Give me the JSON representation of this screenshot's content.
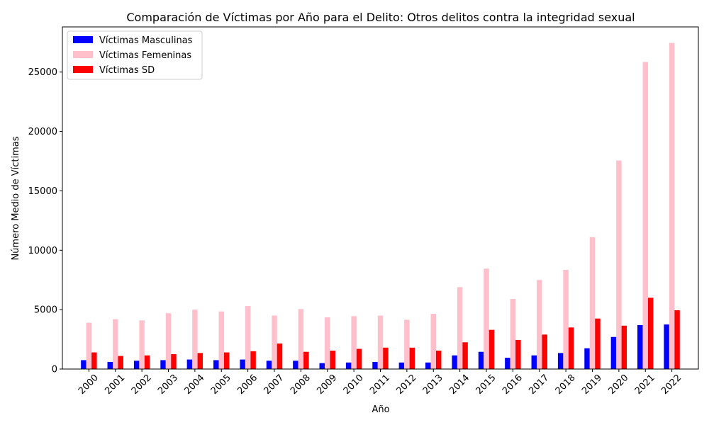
{
  "chart_data": {
    "type": "bar",
    "title": "Comparación de Víctimas por Año para el Delito: Otros delitos contra la integridad sexual",
    "xlabel": "Año",
    "ylabel": "Número Medio de Víctimas",
    "categories": [
      "2000",
      "2001",
      "2002",
      "2003",
      "2004",
      "2005",
      "2006",
      "2007",
      "2008",
      "2009",
      "2010",
      "2011",
      "2012",
      "2013",
      "2014",
      "2015",
      "2016",
      "2017",
      "2018",
      "2019",
      "2020",
      "2021",
      "2022"
    ],
    "ylim": [
      0,
      28800
    ],
    "yticks": [
      0,
      5000,
      10000,
      15000,
      20000,
      25000
    ],
    "grid": false,
    "legend_position": "top-left",
    "series": [
      {
        "name": "Víctimas Masculinas",
        "color": "#0000ff",
        "values": [
          750,
          600,
          700,
          750,
          800,
          750,
          800,
          700,
          700,
          500,
          550,
          600,
          550,
          550,
          1150,
          1450,
          950,
          1150,
          1350,
          1750,
          2700,
          3700,
          3750
        ]
      },
      {
        "name": "Víctimas Femeninas",
        "color": "#ffc0cb",
        "values": [
          3900,
          4200,
          4100,
          4700,
          5000,
          4850,
          5300,
          4500,
          5050,
          4350,
          4450,
          4500,
          4150,
          4650,
          6900,
          8450,
          5900,
          7500,
          8350,
          11100,
          17550,
          25850,
          27450
        ]
      },
      {
        "name": "Víctimas SD",
        "color": "#ff0000",
        "values": [
          1400,
          1100,
          1150,
          1250,
          1350,
          1400,
          1500,
          2150,
          1450,
          1550,
          1700,
          1800,
          1800,
          1550,
          2250,
          3300,
          2450,
          2900,
          3500,
          4250,
          3650,
          6000,
          4950
        ]
      }
    ]
  }
}
